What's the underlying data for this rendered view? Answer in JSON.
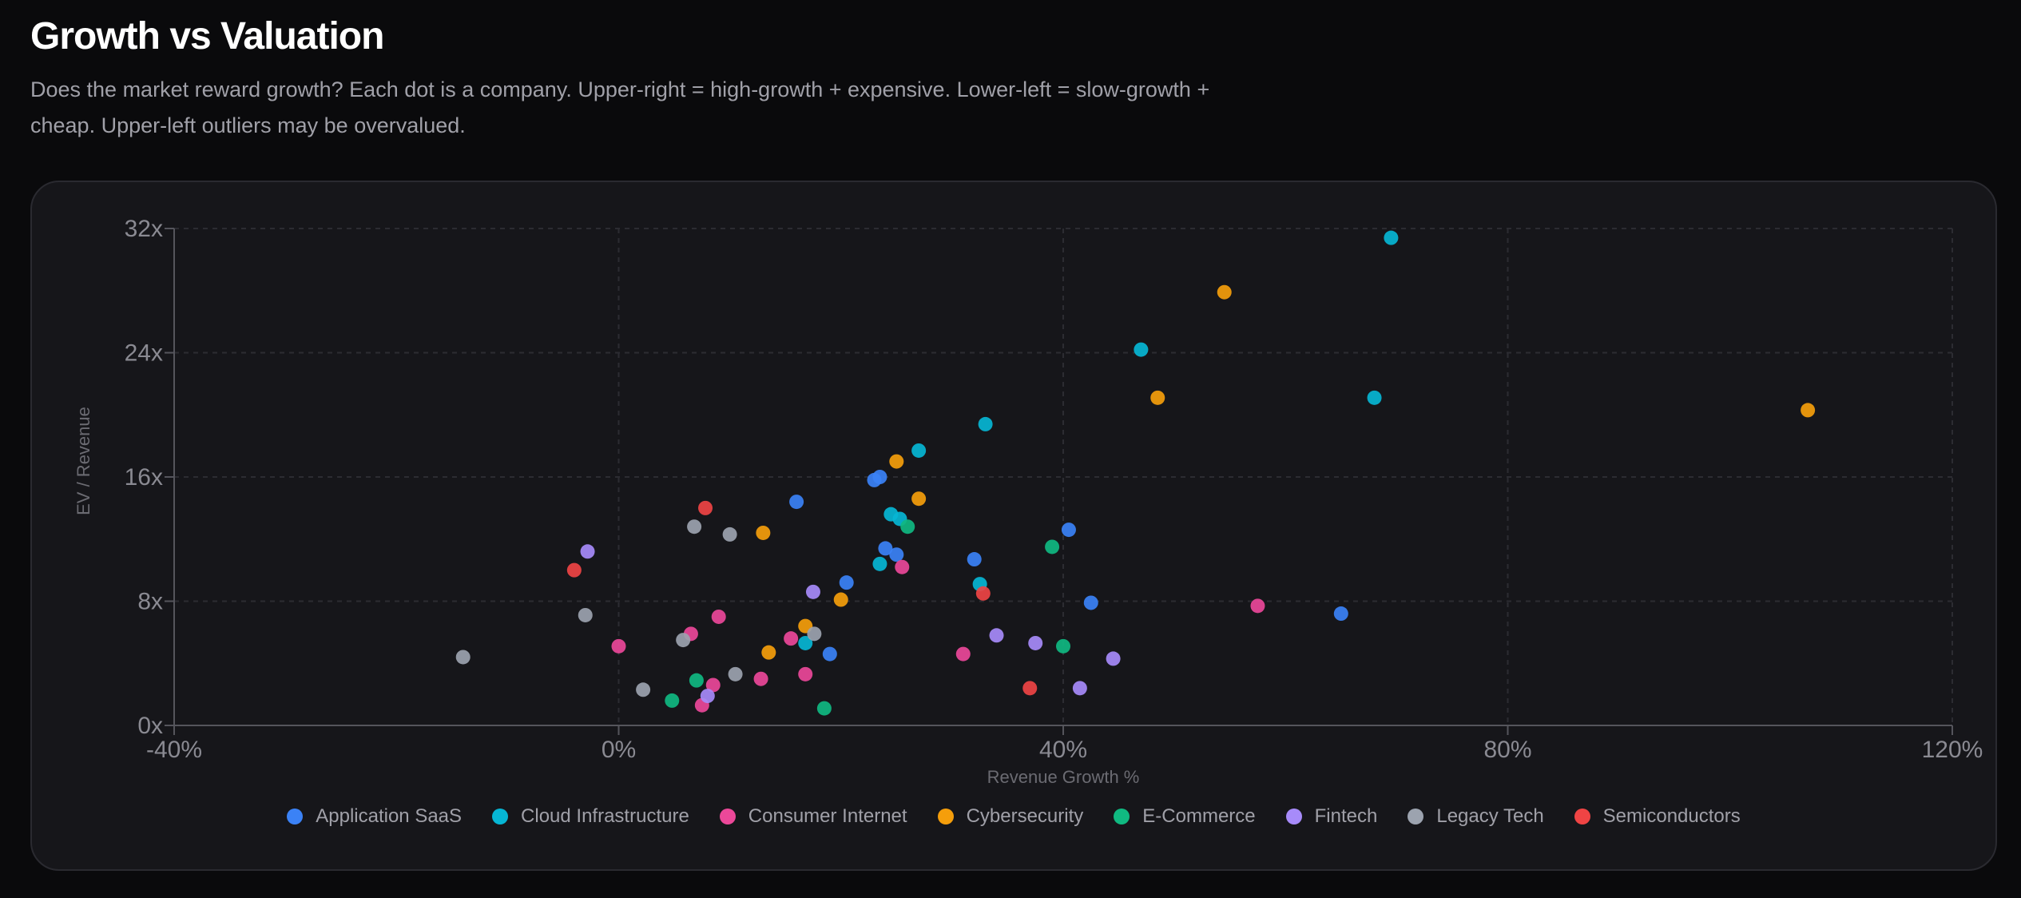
{
  "header": {
    "title": "Growth vs Valuation",
    "subtitle": "Does the market reward growth? Each dot is a company. Upper-right = high-growth + expensive. Lower-left = slow-growth + cheap. Upper-left outliers may be overvalued."
  },
  "chart_data": {
    "type": "scatter",
    "title": "Growth vs Valuation",
    "xlabel": "Revenue Growth %",
    "ylabel": "EV / Revenue",
    "xlim": [
      -40,
      120
    ],
    "ylim": [
      0,
      32
    ],
    "x_ticks": [
      -40,
      0,
      40,
      80,
      120
    ],
    "x_tick_labels": [
      "-40%",
      "0%",
      "40%",
      "80%",
      "120%"
    ],
    "y_ticks": [
      0,
      8,
      16,
      24,
      32
    ],
    "y_tick_labels": [
      "0x",
      "8x",
      "16x",
      "24x",
      "32x"
    ],
    "grid": true,
    "legend_position": "bottom",
    "series": [
      {
        "name": "Application SaaS",
        "color": "#3b82f6",
        "points": [
          [
            16,
            14.4
          ],
          [
            23,
            15.8
          ],
          [
            23.5,
            16
          ],
          [
            24,
            11.4
          ],
          [
            25,
            11
          ],
          [
            20.5,
            9.2
          ],
          [
            19,
            4.6
          ],
          [
            32,
            10.7
          ],
          [
            40.5,
            12.6
          ],
          [
            42.5,
            7.9
          ],
          [
            65,
            7.2
          ]
        ]
      },
      {
        "name": "Cloud Infrastructure",
        "color": "#06b6d4",
        "points": [
          [
            69.5,
            31.4
          ],
          [
            47,
            24.2
          ],
          [
            68,
            21.1
          ],
          [
            33,
            19.4
          ],
          [
            27,
            17.7
          ],
          [
            24.5,
            13.6
          ],
          [
            25.3,
            13.3
          ],
          [
            23.5,
            10.4
          ],
          [
            32.5,
            9.1
          ],
          [
            16.8,
            5.3
          ]
        ]
      },
      {
        "name": "Consumer Internet",
        "color": "#ec4899",
        "points": [
          [
            0,
            5.1
          ],
          [
            6.5,
            5.9
          ],
          [
            9,
            7
          ],
          [
            15.5,
            5.6
          ],
          [
            25.5,
            10.2
          ],
          [
            8.5,
            2.6
          ],
          [
            7.5,
            1.3
          ],
          [
            12.8,
            3
          ],
          [
            16.8,
            3.3
          ],
          [
            31,
            4.6
          ],
          [
            57.5,
            7.7
          ]
        ]
      },
      {
        "name": "Cybersecurity",
        "color": "#f59e0b",
        "points": [
          [
            54.5,
            27.9
          ],
          [
            48.5,
            21.1
          ],
          [
            107,
            20.3
          ],
          [
            25,
            17
          ],
          [
            27,
            14.6
          ],
          [
            13,
            12.4
          ],
          [
            20,
            8.1
          ],
          [
            16.8,
            6.4
          ],
          [
            13.5,
            4.7
          ]
        ]
      },
      {
        "name": "E-Commerce",
        "color": "#10b981",
        "points": [
          [
            26,
            12.8
          ],
          [
            39,
            11.5
          ],
          [
            40,
            5.1
          ],
          [
            7,
            2.9
          ],
          [
            4.8,
            1.6
          ],
          [
            18.5,
            1.1
          ]
        ]
      },
      {
        "name": "Fintech",
        "color": "#a78bfa",
        "points": [
          [
            -2.8,
            11.2
          ],
          [
            17.5,
            8.6
          ],
          [
            34,
            5.8
          ],
          [
            37.5,
            5.3
          ],
          [
            44.5,
            4.3
          ],
          [
            41.5,
            2.4
          ],
          [
            8,
            1.9
          ]
        ]
      },
      {
        "name": "Legacy Tech",
        "color": "#9ca3af",
        "points": [
          [
            -14,
            4.4
          ],
          [
            -3,
            7.1
          ],
          [
            6.8,
            12.8
          ],
          [
            10,
            12.3
          ],
          [
            5.8,
            5.5
          ],
          [
            17.6,
            5.9
          ],
          [
            10.5,
            3.3
          ],
          [
            2.2,
            2.3
          ]
        ]
      },
      {
        "name": "Semiconductors",
        "color": "#ef4444",
        "points": [
          [
            7.8,
            14
          ],
          [
            -4,
            10
          ],
          [
            32.8,
            8.5
          ],
          [
            37,
            2.4
          ]
        ]
      }
    ]
  }
}
